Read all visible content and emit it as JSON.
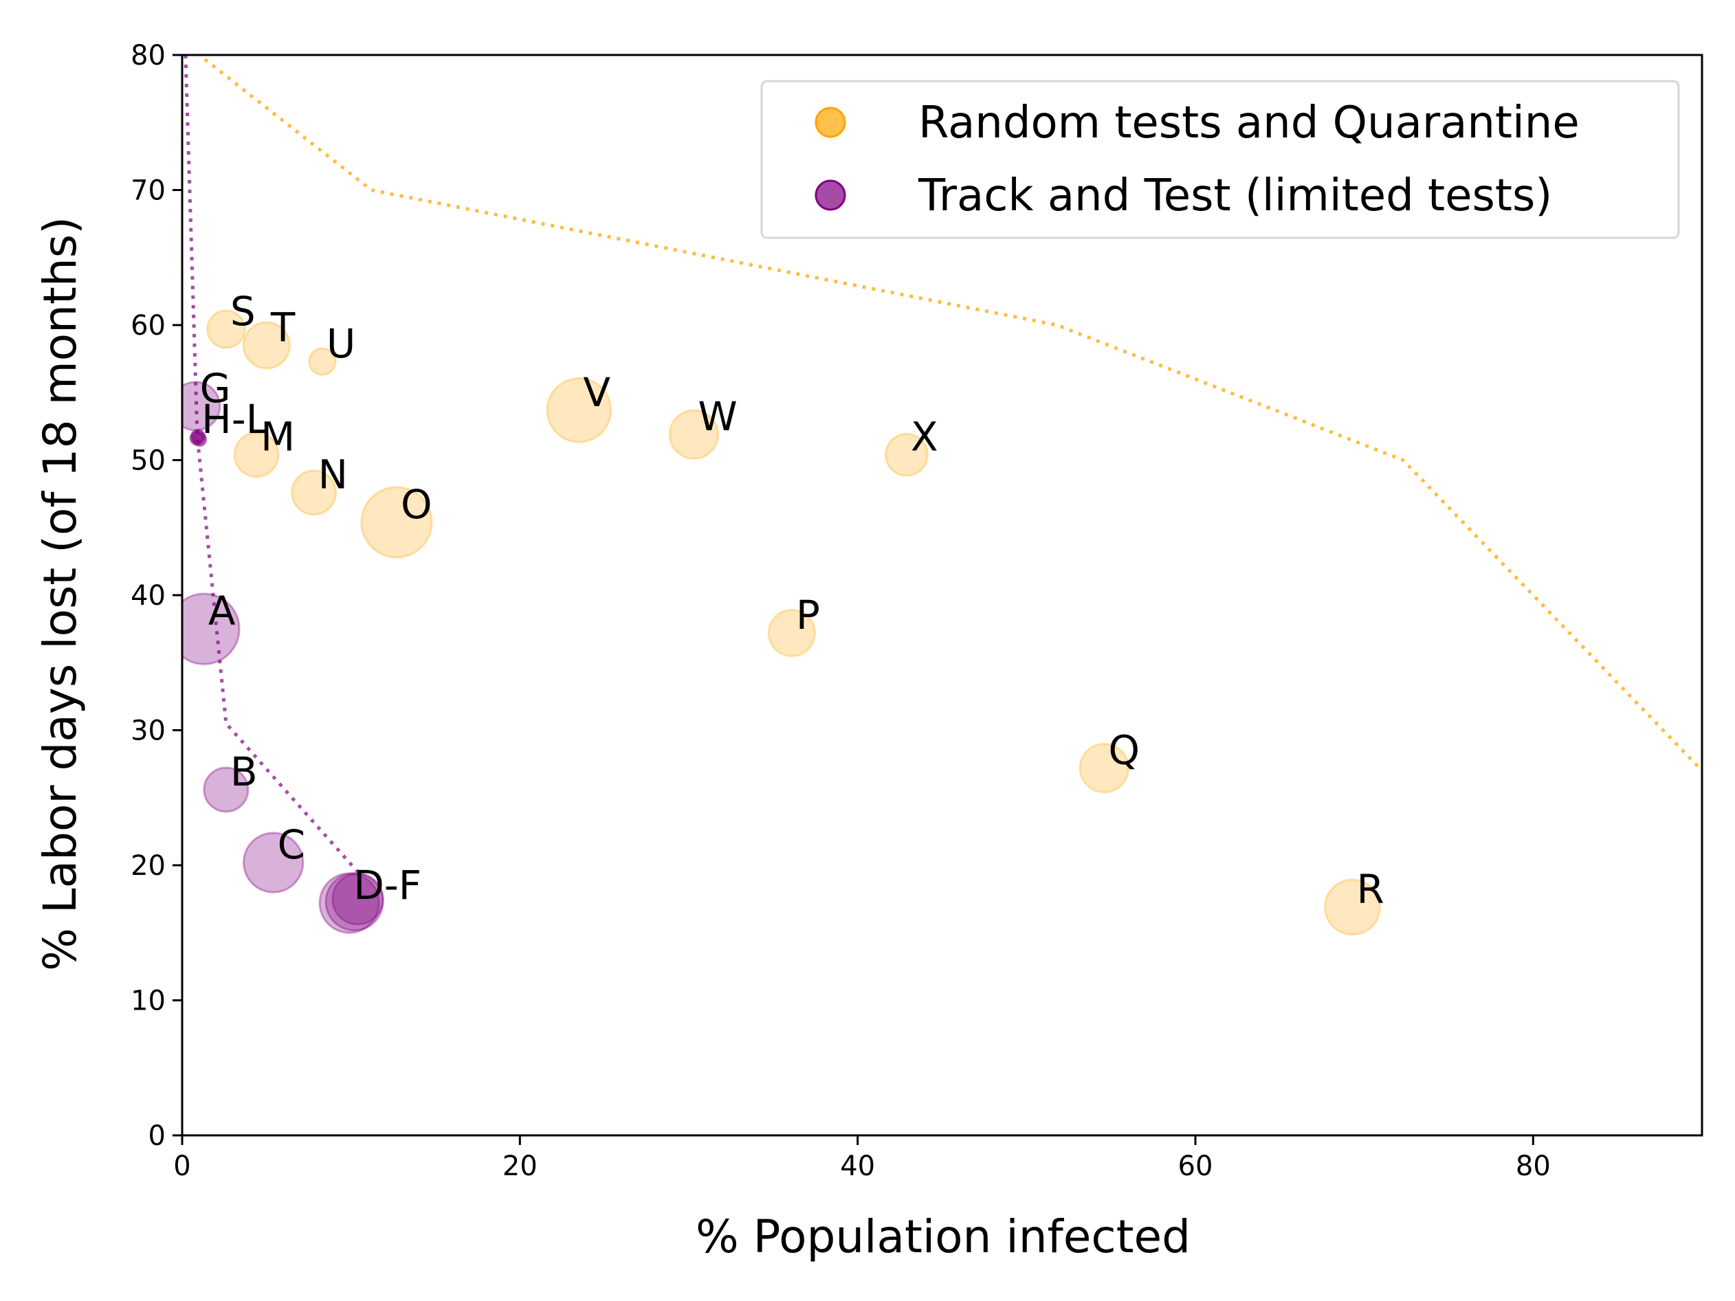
{
  "chart_data": {
    "type": "scatter",
    "title": "",
    "xlabel": "% Population infected",
    "ylabel": "% Labor days lost (of 18 months)",
    "xlim": [
      0,
      90
    ],
    "ylim": [
      0,
      80
    ],
    "xticks": [
      0,
      20,
      40,
      60,
      80
    ],
    "yticks": [
      0,
      10,
      20,
      30,
      40,
      50,
      60,
      70,
      80
    ],
    "legend_position": "top-right",
    "series": [
      {
        "name": "Random tests and Quarantine",
        "color": "#FFA500",
        "points": [
          {
            "label": "M",
            "x": 4.4,
            "y": 50.4,
            "size": 1.0
          },
          {
            "label": "N",
            "x": 7.8,
            "y": 47.6,
            "size": 1.0
          },
          {
            "label": "O",
            "x": 12.7,
            "y": 45.4,
            "size": 1.6
          },
          {
            "label": "P",
            "x": 36.1,
            "y": 37.2,
            "size": 1.05
          },
          {
            "label": "Q",
            "x": 54.6,
            "y": 27.2,
            "size": 1.1
          },
          {
            "label": "R",
            "x": 69.3,
            "y": 16.9,
            "size": 1.25
          },
          {
            "label": "S",
            "x": 2.6,
            "y": 59.7,
            "size": 0.85
          },
          {
            "label": "T",
            "x": 5.0,
            "y": 58.5,
            "size": 1.05
          },
          {
            "label": "U",
            "x": 8.3,
            "y": 57.3,
            "size": 0.6
          },
          {
            "label": "V",
            "x": 23.5,
            "y": 53.7,
            "size": 1.45
          },
          {
            "label": "W",
            "x": 30.3,
            "y": 51.9,
            "size": 1.1
          },
          {
            "label": "X",
            "x": 42.9,
            "y": 50.4,
            "size": 0.95
          }
        ],
        "frontier": [
          [
            0,
            81
          ],
          [
            11.2,
            70
          ],
          [
            51.8,
            60
          ],
          [
            72.3,
            50
          ],
          [
            90,
            27
          ]
        ]
      },
      {
        "name": "Track and Test (limited tests)",
        "color": "#800080",
        "points": [
          {
            "label": "A",
            "x": 1.3,
            "y": 37.5,
            "size": 1.6
          },
          {
            "label": "B",
            "x": 2.6,
            "y": 25.6,
            "size": 1.0
          },
          {
            "label": "C",
            "x": 5.4,
            "y": 20.2,
            "size": 1.35
          },
          {
            "label": "D-F",
            "x": 9.9,
            "y": 17.2,
            "size": 1.35
          },
          {
            "label": "",
            "x": 10.2,
            "y": 17.3,
            "size": 1.3
          },
          {
            "label": "",
            "x": 10.4,
            "y": 17.5,
            "size": 1.15
          },
          {
            "label": "G",
            "x": 0.8,
            "y": 54.0,
            "size": 1.1
          },
          {
            "label": "H-L",
            "x": 0.9,
            "y": 51.7,
            "size": 0.3
          },
          {
            "label": "",
            "x": 1.0,
            "y": 51.6,
            "size": 0.3
          },
          {
            "label": "",
            "x": 0.95,
            "y": 51.8,
            "size": 0.28
          },
          {
            "label": "",
            "x": 1.05,
            "y": 51.5,
            "size": 0.28
          },
          {
            "label": "",
            "x": 0.85,
            "y": 51.6,
            "size": 0.28
          }
        ],
        "frontier": [
          [
            0.2,
            80
          ],
          [
            0.9,
            51.7
          ],
          [
            2.6,
            30.5
          ],
          [
            10.4,
            19.5
          ]
        ]
      }
    ]
  }
}
